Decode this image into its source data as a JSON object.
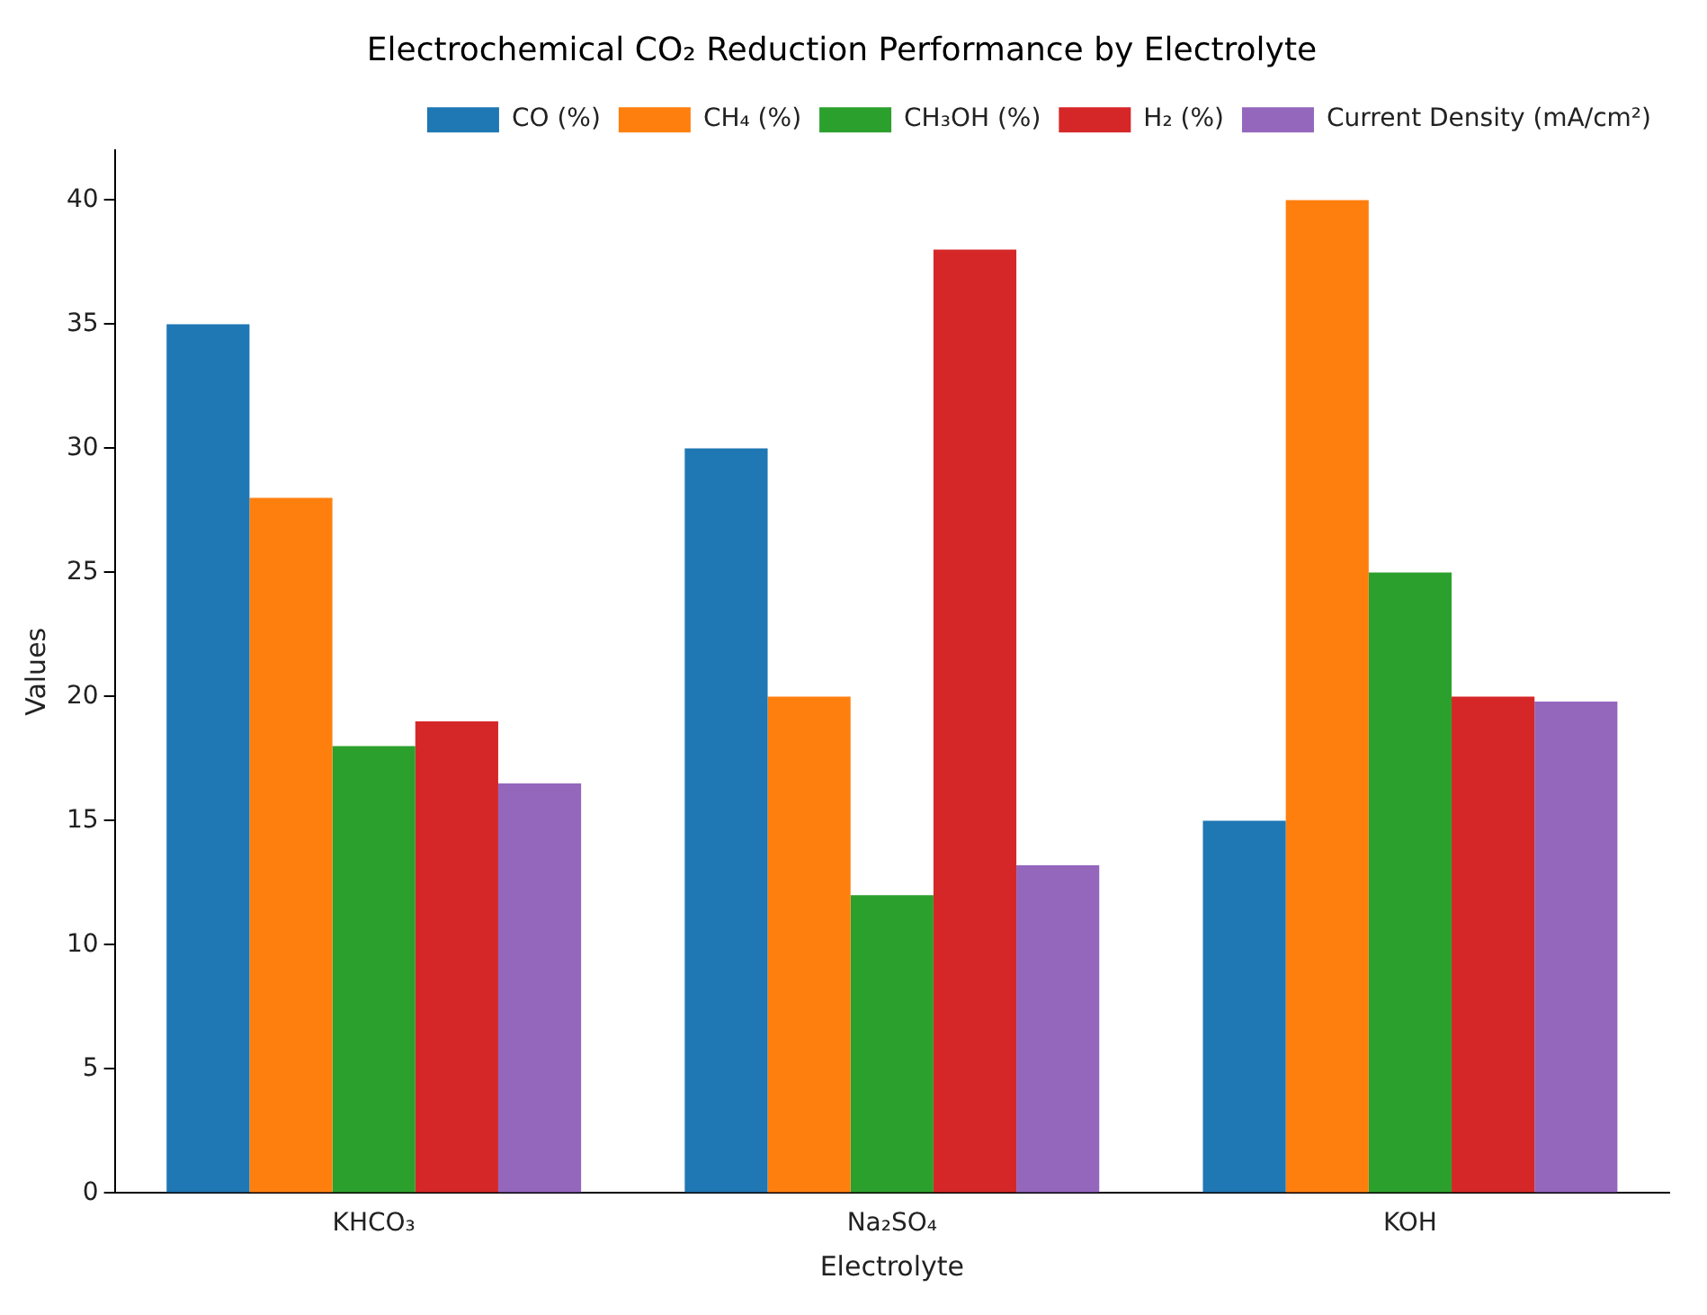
{
  "chart_data": {
    "type": "bar",
    "title": "Electrochemical CO₂ Reduction Performance by Electrolyte",
    "xlabel": "Electrolyte",
    "ylabel": "Values",
    "categories": [
      "KHCO₃",
      "Na₂SO₄",
      "KOH"
    ],
    "series": [
      {
        "name": "CO (%)",
        "color": "#1f77b4",
        "values": [
          35,
          30,
          15
        ]
      },
      {
        "name": "CH₄ (%)",
        "color": "#ff7f0e",
        "values": [
          28,
          20,
          40
        ]
      },
      {
        "name": "CH₃OH (%)",
        "color": "#2ca02c",
        "values": [
          18,
          12,
          25
        ]
      },
      {
        "name": "H₂ (%)",
        "color": "#d62728",
        "values": [
          19,
          38,
          20
        ]
      },
      {
        "name": "Current Density (mA/cm²)",
        "color": "#9467bd",
        "values": [
          16.5,
          13.2,
          19.8
        ]
      }
    ],
    "ylim": [
      0,
      42
    ],
    "yticks": [
      0,
      5,
      10,
      15,
      20,
      25,
      30,
      35,
      40
    ],
    "grid": false,
    "legend": "top right"
  }
}
